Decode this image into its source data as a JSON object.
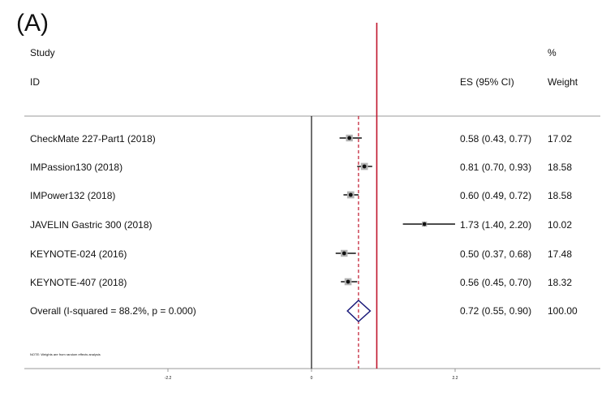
{
  "figure": {
    "panel_label": "(A)",
    "note": "NOTE: Weights are from random effects analysis"
  },
  "columns": {
    "study_line1": "Study",
    "study_line2": "ID",
    "es": "ES (95% CI)",
    "weight_line1": "%",
    "weight_line2": "Weight"
  },
  "chart_data": {
    "type": "forest",
    "title": "",
    "xlabel": "",
    "ylabel": "",
    "x_ticks": [
      "-2.2",
      "0",
      "2.2"
    ],
    "xlim": [
      -4.4,
      4.4
    ],
    "reference_line": 0,
    "null_line": 1,
    "overall_line": 0.72,
    "null_line_color": "#c0142b",
    "overall_line_color": "#c0142b",
    "diamond_color": "#1a1a7a",
    "studies": [
      {
        "id": "CheckMate 227-Part1 (2018)",
        "es": 0.58,
        "lo": 0.43,
        "hi": 0.77,
        "es_text": "0.58 (0.43, 0.77)",
        "weight": 17.02,
        "weight_text": "17.02"
      },
      {
        "id": "IMPassion130 (2018)",
        "es": 0.81,
        "lo": 0.7,
        "hi": 0.93,
        "es_text": "0.81 (0.70, 0.93)",
        "weight": 18.58,
        "weight_text": "18.58"
      },
      {
        "id": "IMPower132 (2018)",
        "es": 0.6,
        "lo": 0.49,
        "hi": 0.72,
        "es_text": "0.60 (0.49, 0.72)",
        "weight": 18.58,
        "weight_text": "18.58"
      },
      {
        "id": "JAVELIN Gastric 300 (2018)",
        "es": 1.73,
        "lo": 1.4,
        "hi": 2.2,
        "es_text": "1.73 (1.40, 2.20)",
        "weight": 10.02,
        "weight_text": "10.02"
      },
      {
        "id": "KEYNOTE-024 (2016)",
        "es": 0.5,
        "lo": 0.37,
        "hi": 0.68,
        "es_text": "0.50 (0.37, 0.68)",
        "weight": 17.48,
        "weight_text": "17.48"
      },
      {
        "id": "KEYNOTE-407 (2018)",
        "es": 0.56,
        "lo": 0.45,
        "hi": 0.7,
        "es_text": "0.56 (0.45, 0.70)",
        "weight": 18.32,
        "weight_text": "18.32"
      }
    ],
    "overall": {
      "id": "Overall  (I-squared = 88.2%, p = 0.000)",
      "es": 0.72,
      "lo": 0.55,
      "hi": 0.9,
      "es_text": "0.72 (0.55, 0.90)",
      "weight": 100.0,
      "weight_text": "100.00"
    }
  }
}
